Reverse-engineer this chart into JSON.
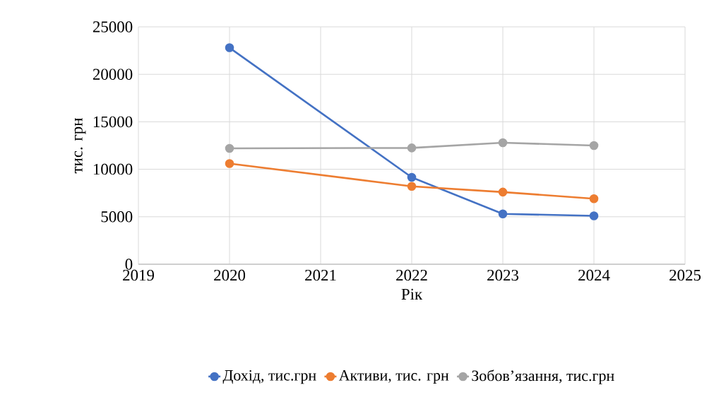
{
  "chart_data": {
    "type": "line",
    "xlabel": "Рік",
    "ylabel": "тис. грн",
    "x": [
      2020,
      2022,
      2023,
      2024
    ],
    "series": [
      {
        "name": "Дохід, тис.грн",
        "color": "#4472c4",
        "values": [
          22800,
          9150,
          5300,
          5100
        ]
      },
      {
        "name": "Активи, тис. грн",
        "color": "#ed7d31",
        "values": [
          10600,
          8200,
          7600,
          6900
        ]
      },
      {
        "name": "Зобов’язання, тис.грн",
        "color": "#a5a5a5",
        "values": [
          12200,
          12250,
          12800,
          12500
        ]
      }
    ],
    "xlim": [
      2019,
      2025
    ],
    "xticks": [
      2019,
      2020,
      2021,
      2022,
      2023,
      2024,
      2025
    ],
    "ylim": [
      0,
      25000
    ],
    "yticks": [
      0,
      5000,
      10000,
      15000,
      20000,
      25000
    ],
    "grid": true,
    "legend": "bottom",
    "marker": "circle",
    "line_style": "solid"
  }
}
